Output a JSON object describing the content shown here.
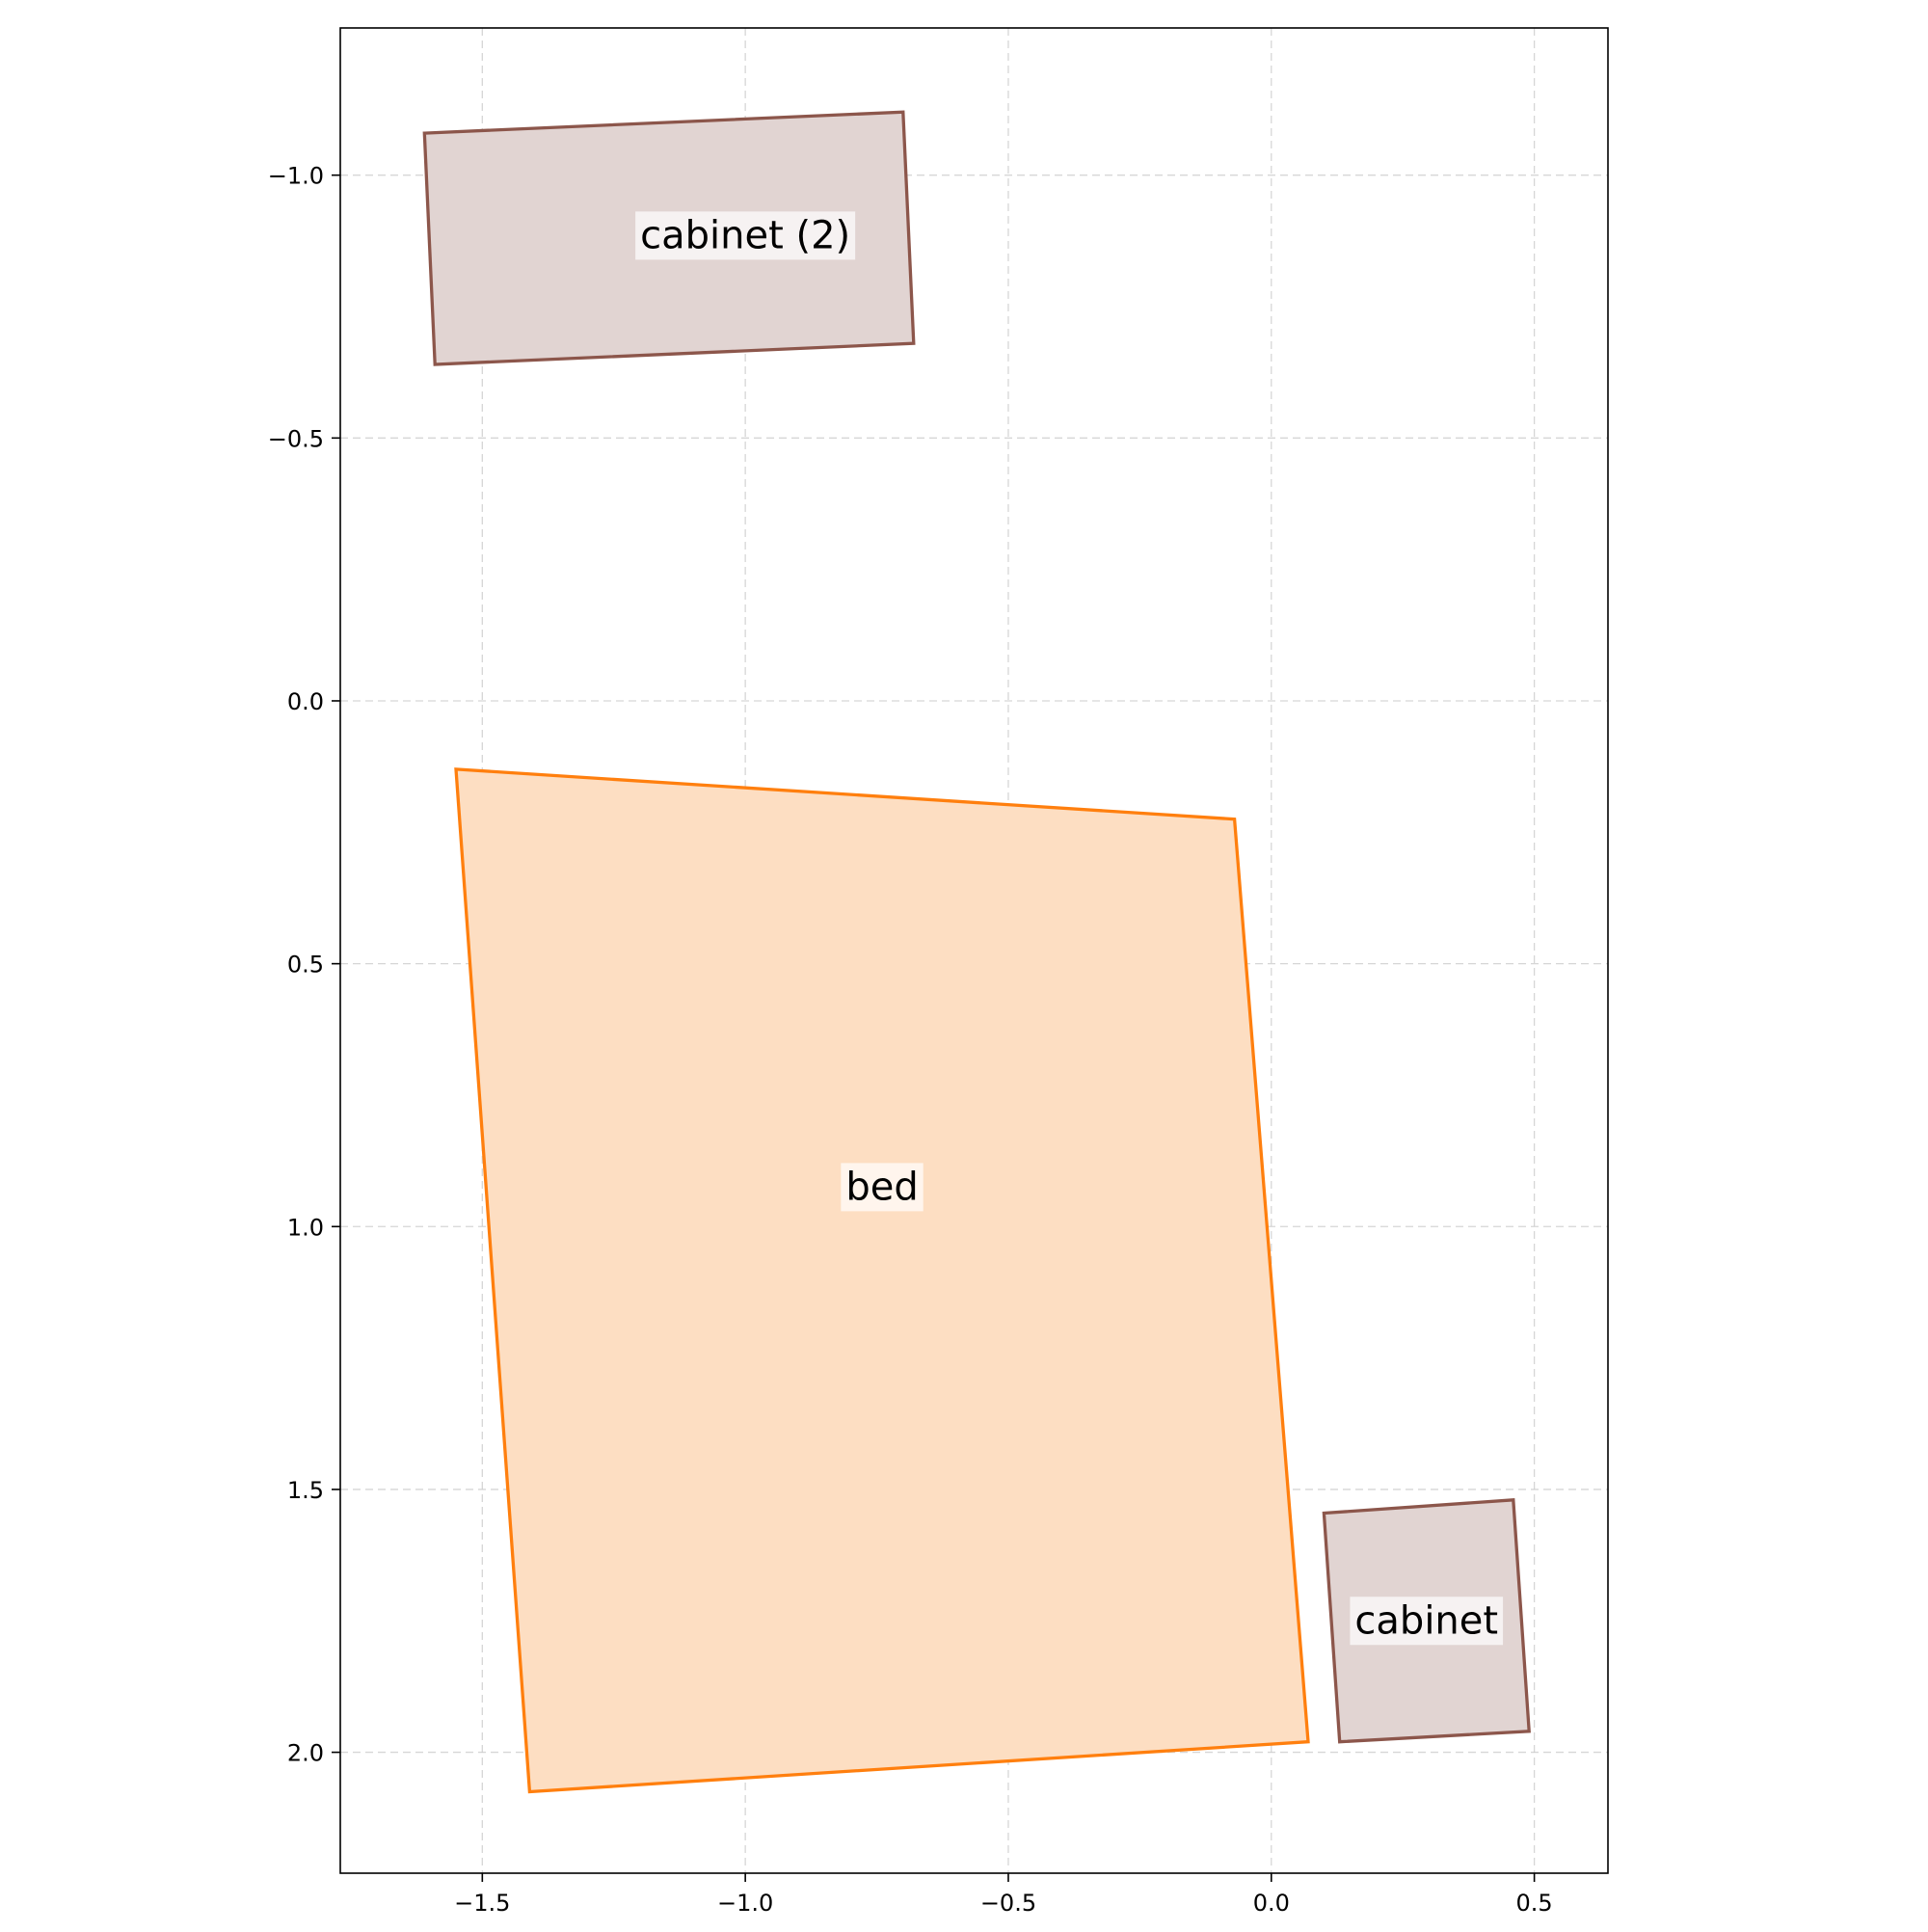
{
  "chart_data": {
    "type": "floorplan",
    "title": "",
    "xlabel": "",
    "ylabel": "",
    "xlim": [
      -1.77,
      0.64
    ],
    "ylim": [
      2.23,
      -1.28
    ],
    "y_inverted": true,
    "grid": true,
    "x_ticks": [
      {
        "value": -1.5,
        "label": "−1.5"
      },
      {
        "value": -1.0,
        "label": "−1.0"
      },
      {
        "value": -0.5,
        "label": "−0.5"
      },
      {
        "value": 0.0,
        "label": "0.0"
      },
      {
        "value": 0.5,
        "label": "0.5"
      }
    ],
    "y_ticks": [
      {
        "value": -1.0,
        "label": "−1.0"
      },
      {
        "value": -0.5,
        "label": "−0.5"
      },
      {
        "value": 0.0,
        "label": "0.0"
      },
      {
        "value": 0.5,
        "label": "0.5"
      },
      {
        "value": 1.0,
        "label": "1.0"
      },
      {
        "value": 1.5,
        "label": "1.5"
      },
      {
        "value": 2.0,
        "label": "2.0"
      }
    ],
    "objects": [
      {
        "id": "cabinet-2",
        "label": "cabinet (2)",
        "category": "cabinet",
        "edge_color": "#8c564b",
        "fill_color": "#e1d4d2",
        "polygon": [
          [
            -1.61,
            -1.08
          ],
          [
            -0.7,
            -1.12
          ],
          [
            -0.68,
            -0.68
          ],
          [
            -1.59,
            -0.64
          ]
        ],
        "label_at": [
          -1.0,
          -0.885
        ]
      },
      {
        "id": "bed",
        "label": "bed",
        "category": "bed",
        "edge_color": "#ff7f0e",
        "fill_color": "#fddec2",
        "polygon": [
          [
            -1.55,
            0.13
          ],
          [
            -0.07,
            0.225
          ],
          [
            0.07,
            1.98
          ],
          [
            -1.41,
            2.075
          ]
        ],
        "label_at": [
          -0.74,
          0.925
        ]
      },
      {
        "id": "cabinet-1",
        "label": "cabinet",
        "category": "cabinet",
        "edge_color": "#8c564b",
        "fill_color": "#e1d4d2",
        "polygon": [
          [
            0.1,
            1.545
          ],
          [
            0.46,
            1.52
          ],
          [
            0.49,
            1.96
          ],
          [
            0.13,
            1.98
          ]
        ],
        "label_at": [
          0.295,
          1.75
        ]
      }
    ]
  }
}
